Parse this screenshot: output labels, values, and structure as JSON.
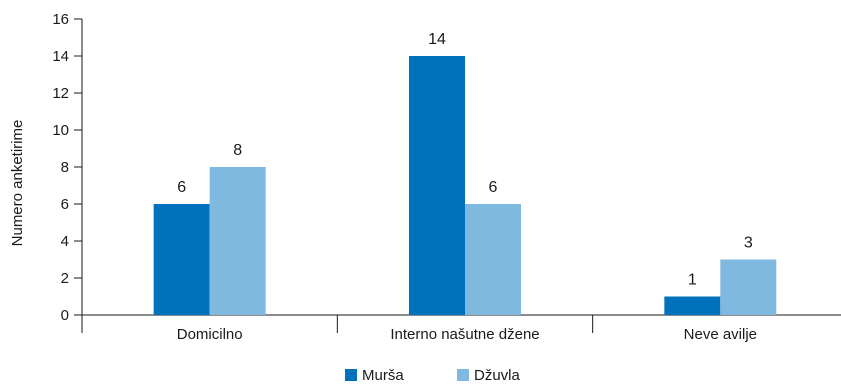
{
  "chart_data": {
    "type": "bar",
    "categories": [
      "Domicilno",
      "Interno našutne džene",
      "Neve avilje"
    ],
    "series": [
      {
        "name": "Murša",
        "values": [
          6,
          14,
          1
        ],
        "color": "#0072bc"
      },
      {
        "name": "Džuvla",
        "values": [
          8,
          6,
          3
        ],
        "color": "#7fb9e0"
      }
    ],
    "ylabel": "Numero anketirime",
    "xlabel": "",
    "ylim": [
      0,
      16
    ],
    "yticks": [
      0,
      2,
      4,
      6,
      8,
      10,
      12,
      14,
      16
    ],
    "grid": false,
    "legend": "bottom-center"
  }
}
